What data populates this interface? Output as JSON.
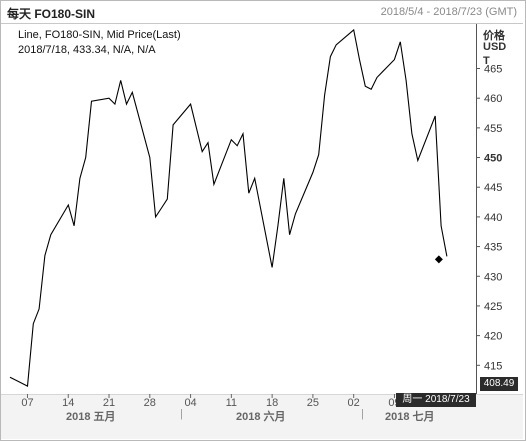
{
  "header": {
    "title": "每天 FO180-SIN",
    "range": "2018/5/4 - 2018/7/23 (GMT)"
  },
  "legend": {
    "line1": "Line, FO180-SIN, Mid Price(Last)",
    "line2": "2018/7/18, 433.34, N/A, N/A"
  },
  "axis": {
    "unit_lines": [
      "价格",
      "USD",
      "T"
    ],
    "cursor_value": "408.49",
    "cursor_date": "周一 2018/7/23"
  },
  "months": [
    {
      "label": "2018 五月"
    },
    {
      "label": "2018 六月"
    },
    {
      "label": "2018 七月"
    }
  ],
  "chart_data": {
    "type": "line",
    "title": "每天 FO180-SIN",
    "series_name": "FO180-SIN, Mid Price(Last)",
    "x_tick_labels": [
      "07",
      "14",
      "21",
      "28",
      "04",
      "11",
      "18",
      "25",
      "02",
      "09"
    ],
    "y_ticks": [
      415,
      420,
      425,
      430,
      435,
      440,
      445,
      450,
      455,
      460,
      465
    ],
    "ylim": [
      410.5,
      472.5
    ],
    "grid": false,
    "highlighted_point": {
      "date": "2018/7/18",
      "value": 433.34
    },
    "x": [
      "2018/5/4",
      "2018/5/7",
      "2018/5/8",
      "2018/5/9",
      "2018/5/10",
      "2018/5/11",
      "2018/5/14",
      "2018/5/15",
      "2018/5/16",
      "2018/5/17",
      "2018/5/18",
      "2018/5/21",
      "2018/5/22",
      "2018/5/23",
      "2018/5/24",
      "2018/5/25",
      "2018/5/28",
      "2018/5/29",
      "2018/5/30",
      "2018/5/31",
      "2018/6/1",
      "2018/6/4",
      "2018/6/5",
      "2018/6/6",
      "2018/6/7",
      "2018/6/8",
      "2018/6/11",
      "2018/6/12",
      "2018/6/13",
      "2018/6/14",
      "2018/6/15",
      "2018/6/18",
      "2018/6/19",
      "2018/6/20",
      "2018/6/21",
      "2018/6/22",
      "2018/6/25",
      "2018/6/26",
      "2018/6/27",
      "2018/6/28",
      "2018/6/29",
      "2018/7/2",
      "2018/7/3",
      "2018/7/4",
      "2018/7/5",
      "2018/7/6",
      "2018/7/9",
      "2018/7/10",
      "2018/7/11",
      "2018/7/12",
      "2018/7/13",
      "2018/7/16",
      "2018/7/17",
      "2018/7/18"
    ],
    "values": [
      413,
      411.5,
      422,
      424.5,
      433.5,
      437,
      442,
      438.5,
      446.5,
      450,
      459.5,
      460,
      459,
      463,
      459,
      461,
      450,
      440,
      441.5,
      443,
      455.5,
      459,
      455,
      451,
      452.5,
      445.5,
      453,
      452,
      454,
      444,
      446.5,
      431.5,
      438.5,
      446.5,
      437,
      440.5,
      447.5,
      450.5,
      460.5,
      467,
      469,
      471.5,
      466.5,
      462,
      461.5,
      463.5,
      466.5,
      469.5,
      463,
      454,
      449.5,
      457,
      438.5,
      433.34
    ]
  }
}
